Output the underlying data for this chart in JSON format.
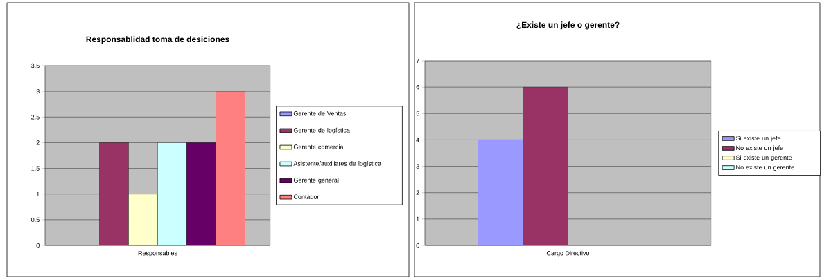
{
  "chart_data": [
    {
      "type": "bar",
      "title": "Responsablidad toma de desiciones",
      "categories": [
        "Responsables"
      ],
      "ylim": [
        0,
        3.5
      ],
      "yticks": [
        0,
        0.5,
        1,
        1.5,
        2,
        2.5,
        3,
        3.5
      ],
      "grid": "y",
      "legend": "right",
      "series": [
        {
          "name": "Gerente de Ventas",
          "color": "#9999ff",
          "values": [
            0
          ]
        },
        {
          "name": "Gerente de logística",
          "color": "#993366",
          "values": [
            2
          ]
        },
        {
          "name": "Gerente comercial",
          "color": "#ffffcc",
          "values": [
            1
          ]
        },
        {
          "name": "Asistente/auxiliares de logística",
          "color": "#ccffff",
          "values": [
            2
          ]
        },
        {
          "name": "Gerente general",
          "color": "#660066",
          "values": [
            2
          ]
        },
        {
          "name": "Contador",
          "color": "#ff8080",
          "values": [
            3
          ]
        }
      ]
    },
    {
      "type": "bar",
      "title": "¿Existe un jefe o gerente?",
      "categories": [
        "Cargo Directivo"
      ],
      "ylim": [
        0,
        7
      ],
      "yticks": [
        0,
        1,
        2,
        3,
        4,
        5,
        6,
        7
      ],
      "grid": "y",
      "legend": "right",
      "series": [
        {
          "name": "Si existe un jefe",
          "color": "#9999ff",
          "values": [
            4
          ]
        },
        {
          "name": "No existe un jefe",
          "color": "#993366",
          "values": [
            6
          ]
        },
        {
          "name": "Si existe un gerente",
          "color": "#ffffcc",
          "values": [
            0
          ]
        },
        {
          "name": "No existe un gerente",
          "color": "#ccffff",
          "values": [
            0
          ]
        }
      ]
    }
  ]
}
